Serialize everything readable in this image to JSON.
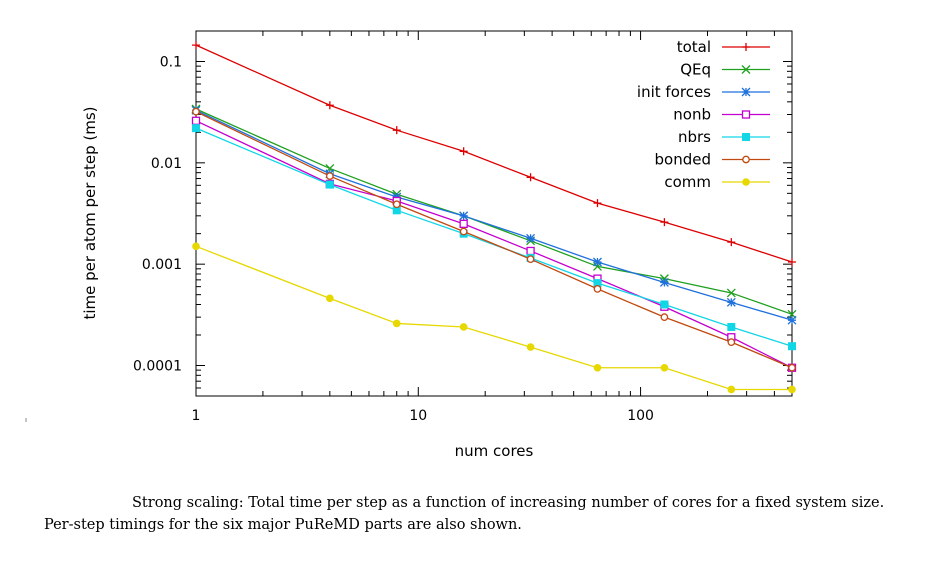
{
  "chart_data": {
    "type": "line",
    "x_scale": "log",
    "y_scale": "log",
    "xlabel": "num cores",
    "ylabel": "time per atom per step (ms)",
    "xlim": [
      1,
      480
    ],
    "ylim": [
      5e-05,
      0.2
    ],
    "x_ticks": [
      {
        "value": 1,
        "label": "1"
      },
      {
        "value": 10,
        "label": "10"
      },
      {
        "value": 100,
        "label": "100"
      }
    ],
    "y_ticks": [
      {
        "value": 0.1,
        "label": "0.1"
      },
      {
        "value": 0.01,
        "label": "0.01"
      },
      {
        "value": 0.001,
        "label": "0.001"
      },
      {
        "value": 0.0001,
        "label": "0.0001"
      }
    ],
    "grid": false,
    "legend_position": "top-right",
    "x": [
      1,
      4,
      8,
      16,
      32,
      64,
      128,
      256,
      480
    ],
    "series": [
      {
        "name": "total",
        "color": "#dd0000",
        "marker": "plus",
        "values": [
          0.145,
          0.037,
          0.021,
          0.013,
          0.0072,
          0.004,
          0.0026,
          0.00165,
          0.00105
        ]
      },
      {
        "name": "QEq",
        "color": "#1fa01f",
        "marker": "cross",
        "values": [
          0.034,
          0.0088,
          0.0049,
          0.003,
          0.0017,
          0.00095,
          0.00072,
          0.00052,
          0.00032
        ]
      },
      {
        "name": "init forces",
        "color": "#1f70dd",
        "marker": "star",
        "values": [
          0.033,
          0.0078,
          0.0046,
          0.003,
          0.0018,
          0.00105,
          0.00066,
          0.00042,
          0.00028
        ]
      },
      {
        "name": "nonb",
        "color": "#c400d0",
        "marker": "square-open",
        "values": [
          0.026,
          0.0062,
          0.0042,
          0.0025,
          0.00135,
          0.00072,
          0.00038,
          0.00019,
          9.5e-05
        ]
      },
      {
        "name": "nbrs",
        "color": "#11d6e6",
        "marker": "square-filled",
        "values": [
          0.022,
          0.0061,
          0.0034,
          0.002,
          0.00115,
          0.00065,
          0.0004,
          0.00024,
          0.000155
        ]
      },
      {
        "name": "bonded",
        "color": "#c04a10",
        "marker": "circle-open",
        "values": [
          0.032,
          0.0074,
          0.0039,
          0.0021,
          0.00112,
          0.00057,
          0.0003,
          0.00017,
          9.5e-05
        ]
      },
      {
        "name": "comm",
        "color": "#e6d800",
        "marker": "circle-filled",
        "values": [
          0.0015,
          0.00046,
          0.00026,
          0.00024,
          0.000152,
          9.5e-05,
          9.5e-05,
          5.8e-05,
          5.8e-05
        ]
      }
    ]
  },
  "caption": "Strong scaling: Total time per step as a function of increasing number of cores for a fixed system size. Per-step timings for the six major PuReMD parts are also shown."
}
